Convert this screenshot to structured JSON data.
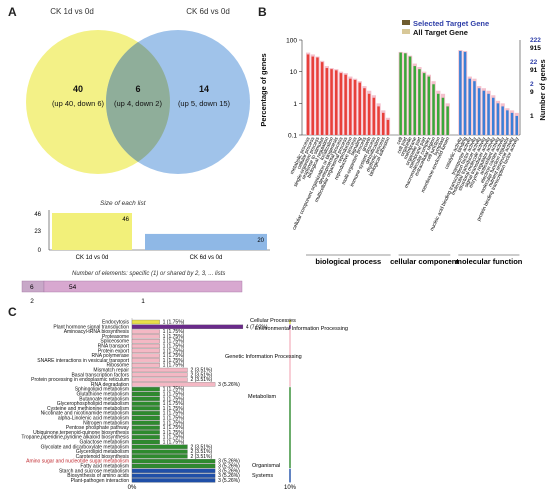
{
  "panel_labels": {
    "a": "A",
    "b": "B",
    "c": "C"
  },
  "colors": {
    "venn_left": "#f2f07a",
    "venn_right": "#8fb8e6",
    "go_bp": "#e8403a",
    "go_cc": "#3aa83a",
    "go_mf": "#3a7fd8",
    "go_bg": "#f4c0cc",
    "kegg_cellular": "#e8e04a",
    "kegg_env": "#6a2a8a",
    "kegg_gip": "#f4b8c4",
    "kegg_met": "#2e8a2e",
    "kegg_org": "#2e8a2e",
    "kegg_sys": "#1f4fa8"
  },
  "chart_data": [
    {
      "type": "venn",
      "sets": [
        {
          "name": "CK 1d vs 0d",
          "size": 46
        },
        {
          "name": "CK 6d vs 0d",
          "size": 20
        }
      ],
      "regions": [
        {
          "sets": [
            "CK 1d vs 0d"
          ],
          "count": "40",
          "detail": "(up 40, down 6)"
        },
        {
          "sets": [
            "CK 1d vs 0d",
            "CK 6d vs 0d"
          ],
          "count": "6",
          "detail": "(up 4, down 2)"
        },
        {
          "sets": [
            "CK 6d vs 0d"
          ],
          "count": "14",
          "detail": "(up 5, down 15)"
        }
      ],
      "size_title": "Size of each list",
      "size_ticks": [
        "46",
        "23",
        "0"
      ],
      "size_bars": [
        {
          "label": "CK 1d vs 0d",
          "value": 46,
          "value_label": "46"
        },
        {
          "label": "CK 6d vs 0d",
          "value": 20,
          "value_label": "20"
        }
      ],
      "shared_title": "Number of elements: specific (1) or shared by 2, 3, ... lists",
      "shared_bars": [
        {
          "value": 6,
          "value_label": "6",
          "bottom_label": "2"
        },
        {
          "value": 54,
          "value_label": "54",
          "bottom_label": "1"
        }
      ]
    },
    {
      "type": "bar",
      "legend": [
        {
          "name": "Selected Target Gene"
        },
        {
          "name": "All Target Gene"
        }
      ],
      "ylabel": "Percentage of genes",
      "y2label": "Number of genes",
      "yscale": "log",
      "ylim": [
        0.1,
        100
      ],
      "yticks": [
        "100",
        "10",
        "1",
        "0.1"
      ],
      "y2ticks_selected": [
        "222",
        "22",
        "2"
      ],
      "y2ticks_all": [
        "915",
        "91",
        "9",
        "1"
      ],
      "groups": [
        {
          "name": "biological process",
          "color_key": "go_bp",
          "categories": [
            "metabolic process",
            "cellular process",
            "single-organism process",
            "response to stimulus",
            "biological regulation",
            "localization",
            "cellular component organization or biogenesis",
            "developmental process",
            "multicellular organismal process",
            "reproduction",
            "reproductive process",
            "signaling",
            "multi-organism process",
            "growth",
            "immune system process",
            "detoxification",
            "rhythmic process",
            "biological adhesion"
          ],
          "selected": [
            35,
            30,
            28,
            20,
            13,
            12,
            11,
            9,
            8,
            6,
            5.5,
            4.5,
            3,
            2,
            1.5,
            0.8,
            0.5,
            0.3
          ],
          "all": [
            40,
            35,
            30,
            22,
            15,
            13,
            12,
            10,
            9,
            7,
            6,
            5,
            3.5,
            2.5,
            1.8,
            1,
            0.6,
            0.35
          ]
        },
        {
          "name": "cellular component",
          "color_key": "go_cc",
          "categories": [
            "cell",
            "cell part",
            "organelle",
            "membrane",
            "organelle part",
            "membrane part",
            "macromolecular complex",
            "extracellular region",
            "cell junction",
            "symplast",
            "membrane-enclosed lumen"
          ],
          "selected": [
            40,
            38,
            30,
            15,
            12,
            9,
            7,
            4,
            2,
            1.5,
            0.8
          ],
          "all": [
            42,
            40,
            32,
            18,
            14,
            10,
            8,
            5,
            2.5,
            2,
            1
          ]
        },
        {
          "name": "molecular function",
          "color_key": "go_mf",
          "categories": [
            "catalytic activity",
            "binding",
            "transporter activity",
            "nucleic acid binding transcription factor activity",
            "molecular transducer activity",
            "structural molecule activity",
            "signal transducer activity",
            "enzyme regulator activity",
            "antioxidant activity",
            "electron carrier activity",
            "molecular function regulator",
            "nutrient reservoir activity",
            "protein binding transcription factor activity"
          ],
          "selected": [
            45,
            42,
            6,
            5,
            3,
            2.5,
            2,
            1.5,
            1,
            0.8,
            0.6,
            0.5,
            0.4
          ],
          "all": [
            48,
            45,
            7,
            6,
            3.5,
            3,
            2.5,
            1.8,
            1.2,
            1,
            0.7,
            0.6,
            0.5
          ]
        }
      ]
    },
    {
      "type": "bar",
      "orientation": "horizontal",
      "xlabel_left": "0%",
      "xlabel_right": "10%",
      "categories": [
        "Endocytosis",
        "Plant hormone signal transduction",
        "Aminoacyl-tRNA biosynthesis",
        "Proteasome",
        "Spliceosome",
        "RNA transport",
        "Protein export",
        "RNA polymerase",
        "SNARE interactions in vesicular transport",
        "Ribosome",
        "Mismatch repair",
        "Basal transcription factors",
        "Protein processing in endoplasmic reticulum",
        "RNA degradation",
        "Sphingolipid metabolism",
        "Glutathione metabolism",
        "Butanoate metabolism",
        "Glycerophospholipid metabolism",
        "Cysteine and methionine metabolism",
        "Nicotinate and nicotinamide metabolism",
        "alpha-Linolenic acid metabolism",
        "Nitrogen metabolism",
        "Pentose phosphate pathway",
        "Ubiquinone,terpenoid-quinone biosynthesis",
        "Tropane,piperidine,pyridine alkaloid biosynthesis",
        "Galactose metabolism",
        "Glycolate and dicarboxylate metabolism",
        "Glycerolipid metabolism",
        "Carotenoid biosynthesis",
        "Amino sugar and nucleotide sugar metabolism",
        "Fatty acid metabolism",
        "Starch and sucrose metabolism",
        "Biosynthesis of amino acids",
        "Plant-pathogen interaction"
      ],
      "values": [
        1.75,
        7.02,
        1.75,
        1.75,
        1.75,
        1.75,
        1.75,
        1.75,
        1.75,
        1.75,
        3.51,
        3.51,
        3.51,
        5.26,
        1.75,
        1.75,
        1.75,
        1.75,
        1.75,
        1.75,
        1.75,
        1.75,
        1.75,
        1.75,
        1.75,
        1.75,
        3.51,
        3.51,
        3.51,
        5.26,
        5.26,
        5.26,
        5.26,
        5.26
      ],
      "value_labels": [
        "1 (1.75%)",
        "4 (7.02%)",
        "1 (1.75%)",
        "1 (1.75%)",
        "1 (1.75%)",
        "1 (1.75%)",
        "1 (1.75%)",
        "1 (1.75%)",
        "1 (1.75%)",
        "1 (1.75%)",
        "2 (3.51%)",
        "2 (3.51%)",
        "2 (3.51%)",
        "3 (5.26%)",
        "1 (1.75%)",
        "1 (1.75%)",
        "1 (1.75%)",
        "1 (1.75%)",
        "1 (1.75%)",
        "1 (1.75%)",
        "1 (1.75%)",
        "1 (1.75%)",
        "1 (1.75%)",
        "1 (1.75%)",
        "1 (1.75%)",
        "1 (1.75%)",
        "2 (3.51%)",
        "2 (3.51%)",
        "2 (3.51%)",
        "3 (5.26%)",
        "3 (5.26%)",
        "3 (5.26%)",
        "3 (5.26%)",
        "3 (5.26%)"
      ],
      "classes": [
        {
          "name": "Cellular Processes",
          "color_key": "kegg_cellular",
          "start": 0,
          "end": 0
        },
        {
          "name": "Environmental Information Processing",
          "color_key": "kegg_env",
          "start": 1,
          "end": 1
        },
        {
          "name": "Genetic Information Processing",
          "color_key": "kegg_gip",
          "start": 2,
          "end": 13
        },
        {
          "name": "Metabolism",
          "color_key": "kegg_met",
          "start": 14,
          "end": 30
        },
        {
          "name": "Organismal Systems",
          "color_key": "kegg_sys",
          "start": 31,
          "end": 33
        }
      ],
      "highlight_categories": [
        "Amino sugar and nucleotide sugar metabolism"
      ]
    }
  ]
}
